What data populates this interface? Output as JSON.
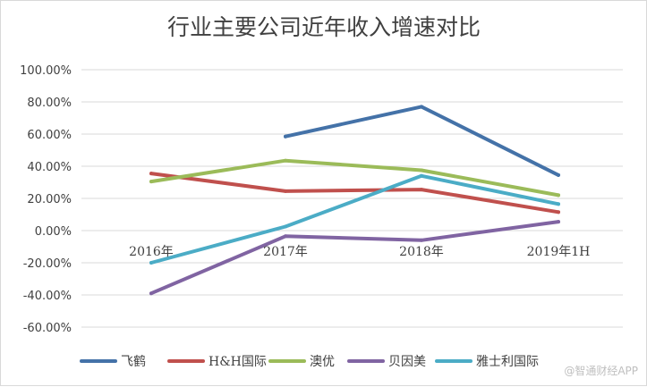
{
  "chart_data": {
    "type": "line",
    "title": "行业主要公司近年收入增速对比",
    "xlabel": "",
    "ylabel": "",
    "categories": [
      "2016年",
      "2017年",
      "2018年",
      "2019年1H"
    ],
    "ylim": [
      -0.6,
      1.0
    ],
    "yticks": [
      -0.6,
      -0.4,
      -0.2,
      0.0,
      0.2,
      0.4,
      0.6,
      0.8,
      1.0
    ],
    "ytick_labels": [
      "-60.00%",
      "-40.00%",
      "-20.00%",
      "0.00%",
      "20.00%",
      "40.00%",
      "60.00%",
      "80.00%",
      "100.00%"
    ],
    "legend_position": "bottom",
    "grid": true,
    "series": [
      {
        "name": "飞鹤",
        "color": "#4472a8",
        "values": [
          null,
          0.585,
          0.77,
          0.345
        ]
      },
      {
        "name": "H&H国际",
        "color": "#c0504d",
        "values": [
          0.355,
          0.245,
          0.255,
          0.115
        ]
      },
      {
        "name": "澳优",
        "color": "#9bbb59",
        "values": [
          0.305,
          0.435,
          0.375,
          0.22
        ]
      },
      {
        "name": "贝因美",
        "color": "#8064a2",
        "values": [
          -0.39,
          -0.035,
          -0.06,
          0.055
        ]
      },
      {
        "name": "雅士利国际",
        "color": "#4bacc6",
        "values": [
          -0.2,
          0.025,
          0.34,
          0.165
        ]
      }
    ]
  },
  "watermark": "@智通财经APP"
}
